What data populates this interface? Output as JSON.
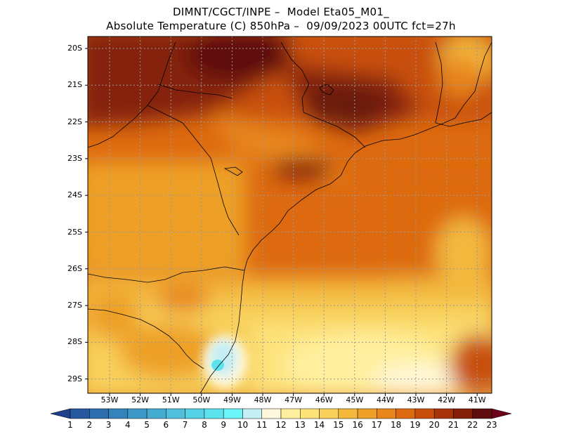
{
  "title": {
    "line1": "DIMNT/CGCT/INPE –  Model Eta05_M01_",
    "line2": "Absolute Temperature (C) 850hPa –  09/09/2023 00UTC fct=27h"
  },
  "lat_labels": [
    "20S",
    "21S",
    "22S",
    "23S",
    "24S",
    "25S",
    "26S",
    "27S",
    "28S",
    "29S"
  ],
  "lon_labels": [
    "53W",
    "52W",
    "51W",
    "50W",
    "49W",
    "48W",
    "47W",
    "46W",
    "45W",
    "44W",
    "43W",
    "42W",
    "41W"
  ],
  "colorbar": {
    "labels": [
      "1",
      "2",
      "3",
      "4",
      "5",
      "6",
      "7",
      "8",
      "9",
      "10",
      "11",
      "12",
      "13",
      "14",
      "15",
      "16",
      "17",
      "18",
      "19",
      "20",
      "21",
      "22",
      "23"
    ],
    "colors": [
      "#1f3f8f",
      "#26579f",
      "#2e6eae",
      "#3583bb",
      "#3d97c6",
      "#46abd1",
      "#4fbfdc",
      "#55d1e5",
      "#5ce3ee",
      "#6bf5f8",
      "#c4eff5",
      "#fff8dc",
      "#ffef9e",
      "#fde27a",
      "#f8d05a",
      "#f3b83c",
      "#eea028",
      "#e8861c",
      "#dd6a10",
      "#c84f0c",
      "#a8330a",
      "#842008",
      "#5e0f0d",
      "#6b0018"
    ]
  },
  "field": {
    "units": "C",
    "level": "850hPa",
    "range_c": [
      10,
      23
    ]
  }
}
